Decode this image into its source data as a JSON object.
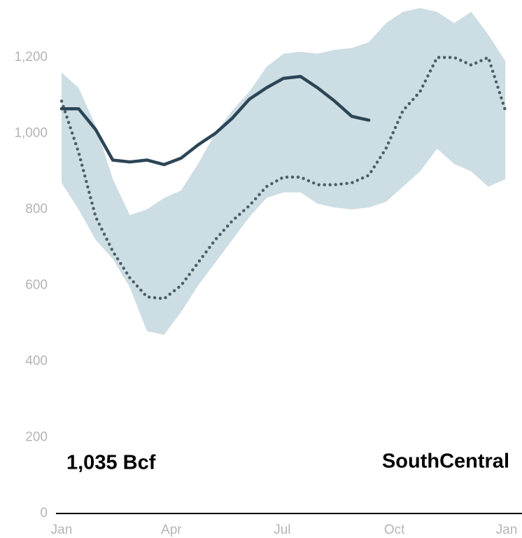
{
  "chart_data": {
    "type": "line",
    "region": "SouthCentral",
    "current_label": "1,035 Bcf",
    "x": [
      0,
      14,
      28,
      42,
      56,
      70,
      84,
      98,
      112,
      126,
      140,
      154,
      168,
      182,
      196,
      210,
      224,
      238,
      252,
      266,
      280,
      294,
      308,
      322,
      336,
      350,
      364
    ],
    "xlim": [
      0,
      365
    ],
    "xticks": [
      {
        "value": 0,
        "label": "Jan"
      },
      {
        "value": 90,
        "label": "Apr"
      },
      {
        "value": 181,
        "label": "Jul"
      },
      {
        "value": 273,
        "label": "Oct"
      },
      {
        "value": 365,
        "label": "Jan"
      }
    ],
    "ylim": [
      0,
      1350
    ],
    "yticks": [
      0,
      200,
      400,
      600,
      800,
      {
        "value": 1000,
        "label": "1,000"
      },
      {
        "value": 1200,
        "label": "1,200"
      }
    ],
    "band": {
      "color": "#ccdde3",
      "high": [
        1160,
        1120,
        1020,
        880,
        785,
        800,
        830,
        850,
        920,
        1000,
        1060,
        1110,
        1175,
        1210,
        1215,
        1210,
        1220,
        1225,
        1240,
        1290,
        1320,
        1330,
        1320,
        1290,
        1320,
        1260,
        1190
      ],
      "low": [
        870,
        800,
        720,
        670,
        595,
        480,
        470,
        530,
        600,
        660,
        720,
        780,
        830,
        845,
        845,
        815,
        805,
        800,
        805,
        820,
        860,
        900,
        960,
        920,
        900,
        860,
        880
      ]
    },
    "series": [
      {
        "color": "#4f5d66",
        "dash": "dotted",
        "values": [
          1085,
          950,
          780,
          690,
          620,
          570,
          565,
          600,
          660,
          720,
          770,
          810,
          860,
          885,
          885,
          865,
          865,
          870,
          890,
          960,
          1060,
          1110,
          1200,
          1200,
          1180,
          1200,
          1060
        ]
      },
      {
        "color": "#2c4556",
        "dash": "solid",
        "values": [
          1065,
          1065,
          1010,
          930,
          925,
          930,
          918,
          935,
          970,
          1000,
          1040,
          1090,
          1120,
          1145,
          1150,
          1120,
          1085,
          1045,
          1035,
          null,
          null,
          null,
          null,
          null,
          null,
          null,
          null
        ]
      }
    ]
  }
}
